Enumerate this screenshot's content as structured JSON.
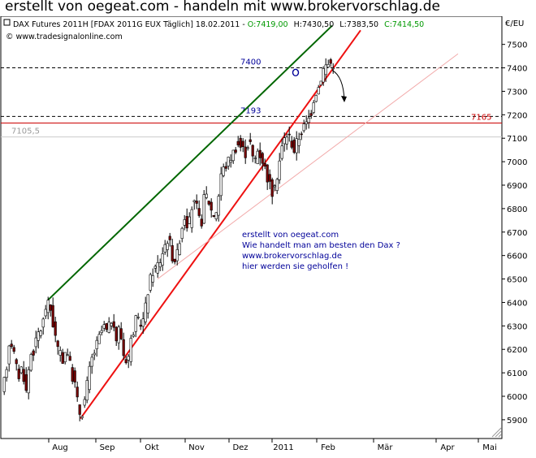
{
  "headline": "erstellt von oegeat.com - handeln mit www.brokervorschlag.de",
  "info_prefix": "DAX Futures 2011H [FDAX 2011G EUX  Täglich] 18.02.2011 - ",
  "info_open": "O:7419,00",
  "info_high": "H:7430,50",
  "info_low": "L:7383,50",
  "info_close": "C:7414,50",
  "copyright": "© www.tradesignalonline.com",
  "unit_label": "€/EU",
  "annotation_lines": [
    "erstellt von oegeat.com",
    "Wie handelt man am besten den Dax ?",
    "www.brokervorschlag.de",
    "hier werden sie geholfen !"
  ],
  "colors": {
    "close_green": "#009900",
    "resistance_green": "#006600",
    "support_red": "#ee1111",
    "level_red": "#cc0000",
    "candle_dark": "#7a0000",
    "annotation_blue": "#000099",
    "level_label_blue": "#000099",
    "faint_line": "#f2aaaa"
  },
  "chart_data": {
    "type": "candlestick",
    "symbol": "DAX Futures 2011H",
    "period": "Täglich",
    "date": "18.02.2011",
    "ohlc_last": {
      "open": 7419.0,
      "high": 7430.5,
      "low": 7383.5,
      "close": 7414.5
    },
    "y_axis": {
      "unit": "€/EU",
      "ylim": [
        5820,
        7620
      ],
      "ticks": [
        5900,
        6000,
        6100,
        6200,
        6300,
        6400,
        6500,
        6600,
        6700,
        6800,
        6900,
        7000,
        7100,
        7200,
        7300,
        7400,
        7500
      ]
    },
    "x_axis": {
      "month_labels": [
        "Aug",
        "Sep",
        "Okt",
        "Nov",
        "Dez",
        "2011",
        "Feb",
        "Mär",
        "Apr",
        "Mai"
      ]
    },
    "horizontal_levels": [
      {
        "label": "7400",
        "value": 7400,
        "style": "dashed",
        "color": "#000000"
      },
      {
        "label": "7193",
        "value": 7193,
        "style": "dashed",
        "color": "#000000"
      },
      {
        "label": "7165",
        "value": 7165,
        "style": "solid",
        "color": "#cc0000"
      },
      {
        "label": "7105,5",
        "value": 7105.5,
        "style": "solid",
        "color": "#cccccc"
      }
    ],
    "trendlines": [
      {
        "name": "resistance",
        "color": "#006600",
        "from": {
          "bar": 55,
          "value": 6410
        },
        "to": {
          "bar": 405,
          "value": 7580
        }
      },
      {
        "name": "support",
        "color": "#ee1111",
        "from": {
          "bar": 95,
          "value": 5905
        },
        "to": {
          "bar": 440,
          "value": 7560
        }
      },
      {
        "name": "faint",
        "color": "#f2aaaa",
        "from": {
          "bar": 190,
          "value": 6500
        },
        "to": {
          "bar": 560,
          "value": 7460
        }
      }
    ],
    "circle_marker": {
      "bar": 360,
      "value": 7380
    },
    "arrow": {
      "from": {
        "bar": 405,
        "value": 7390
      },
      "to": {
        "bar": 420,
        "value": 7260
      }
    },
    "price_anchors": [
      [
        0,
        6000
      ],
      [
        5,
        6100
      ],
      [
        10,
        6260
      ],
      [
        15,
        6180
      ],
      [
        20,
        6080
      ],
      [
        25,
        6130
      ],
      [
        30,
        6020
      ],
      [
        35,
        6180
      ],
      [
        40,
        6200
      ],
      [
        45,
        6270
      ],
      [
        50,
        6300
      ],
      [
        55,
        6400
      ],
      [
        60,
        6370
      ],
      [
        65,
        6270
      ],
      [
        70,
        6180
      ],
      [
        75,
        6160
      ],
      [
        80,
        6210
      ],
      [
        85,
        6110
      ],
      [
        90,
        6050
      ],
      [
        95,
        5930
      ],
      [
        100,
        5940
      ],
      [
        105,
        6050
      ],
      [
        110,
        6150
      ],
      [
        115,
        6200
      ],
      [
        120,
        6250
      ],
      [
        125,
        6300
      ],
      [
        130,
        6270
      ],
      [
        135,
        6330
      ],
      [
        140,
        6230
      ],
      [
        145,
        6300
      ],
      [
        150,
        6180
      ],
      [
        155,
        6150
      ],
      [
        160,
        6260
      ],
      [
        165,
        6320
      ],
      [
        170,
        6310
      ],
      [
        175,
        6330
      ],
      [
        180,
        6450
      ],
      [
        185,
        6530
      ],
      [
        190,
        6550
      ],
      [
        195,
        6580
      ],
      [
        200,
        6640
      ],
      [
        205,
        6680
      ],
      [
        210,
        6600
      ],
      [
        215,
        6580
      ],
      [
        220,
        6700
      ],
      [
        225,
        6770
      ],
      [
        230,
        6720
      ],
      [
        235,
        6830
      ],
      [
        240,
        6800
      ],
      [
        245,
        6720
      ],
      [
        250,
        6870
      ],
      [
        255,
        6830
      ],
      [
        260,
        6770
      ],
      [
        265,
        6800
      ],
      [
        270,
        6950
      ],
      [
        275,
        6980
      ],
      [
        280,
        7010
      ],
      [
        285,
        7040
      ],
      [
        290,
        7080
      ],
      [
        295,
        7060
      ],
      [
        300,
        7040
      ],
      [
        305,
        7100
      ],
      [
        310,
        6990
      ],
      [
        315,
        7050
      ],
      [
        320,
        7020
      ],
      [
        325,
        6960
      ],
      [
        330,
        6900
      ],
      [
        335,
        6850
      ],
      [
        340,
        6970
      ],
      [
        345,
        7060
      ],
      [
        350,
        7120
      ],
      [
        355,
        7100
      ],
      [
        360,
        7050
      ],
      [
        365,
        7100
      ],
      [
        370,
        7140
      ],
      [
        375,
        7160
      ],
      [
        380,
        7200
      ],
      [
        385,
        7290
      ],
      [
        390,
        7320
      ],
      [
        395,
        7390
      ],
      [
        400,
        7415
      ],
      [
        405,
        7420
      ]
    ],
    "total_bars": 405
  }
}
